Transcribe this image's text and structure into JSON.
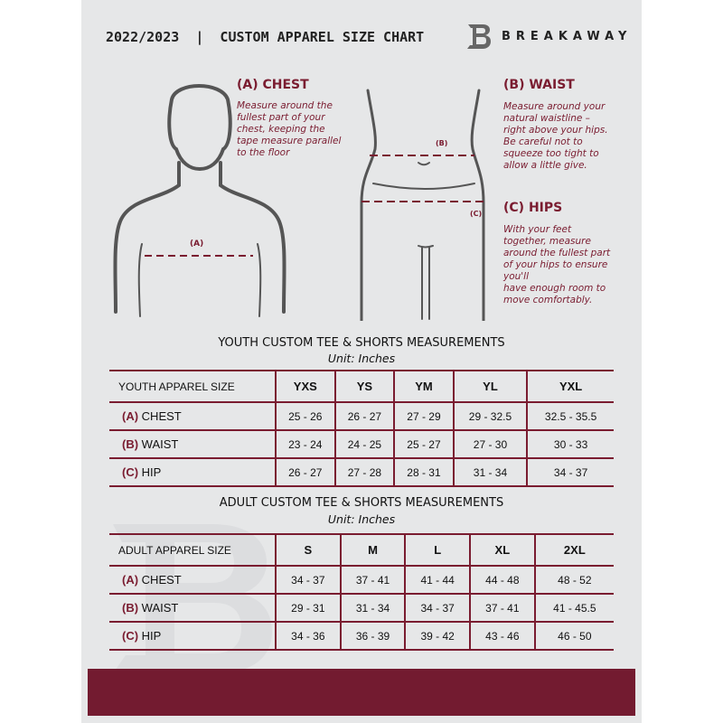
{
  "header": {
    "title": "2022/2023  |  CUSTOM APPAREL SIZE CHART",
    "brand": "BREAKAWAY",
    "logo_letter": "B"
  },
  "chest": {
    "heading": "(A) CHEST",
    "lines": [
      "Measure around the",
      "fullest part of your",
      "chest, keeping the",
      "tape measure parallel",
      "to the floor"
    ],
    "marker": "(A)"
  },
  "waist": {
    "heading": "(B) WAIST",
    "lines": [
      "Measure around your",
      "natural waistline –",
      "right above your hips.",
      "Be careful not to",
      "squeeze too tight to",
      "allow a little give."
    ],
    "marker": "(B)"
  },
  "hips": {
    "heading": "(C) HIPS",
    "lines": [
      "With your feet",
      "together, measure",
      "around the fullest part",
      "of your hips to ensure",
      "you'll",
      "have enough room to",
      "move comfortably."
    ],
    "marker": "(C)"
  },
  "youth": {
    "title": "YOUTH CUSTOM TEE & SHORTS MEASUREMENTS",
    "unit": "Unit: Inches",
    "size_label": "YOUTH APPAREL SIZE",
    "sizes": [
      "YXS",
      "YS",
      "YM",
      "YL",
      "YXL"
    ],
    "rows": [
      {
        "code": "(A)",
        "name": "CHEST",
        "values": [
          "25 - 26",
          "26 - 27",
          "27 - 29",
          "29 - 32.5",
          "32.5 - 35.5"
        ]
      },
      {
        "code": "(B)",
        "name": "WAIST",
        "values": [
          "23 - 24",
          "24 - 25",
          "25 - 27",
          "27 - 30",
          "30 - 33"
        ]
      },
      {
        "code": "(C)",
        "name": "HIP",
        "values": [
          "26 - 27",
          "27 - 28",
          "28 - 31",
          "31 - 34",
          "34 - 37"
        ]
      }
    ]
  },
  "adult": {
    "title": "ADULT CUSTOM TEE & SHORTS MEASUREMENTS",
    "unit": "Unit: Inches",
    "size_label": "ADULT APPAREL SIZE",
    "sizes": [
      "S",
      "M",
      "L",
      "XL",
      "2XL"
    ],
    "rows": [
      {
        "code": "(A)",
        "name": "CHEST",
        "values": [
          "34 - 37",
          "37 - 41",
          "41 - 44",
          "44 - 48",
          "48 - 52"
        ]
      },
      {
        "code": "(B)",
        "name": "WAIST",
        "values": [
          "29 - 31",
          "31 - 34",
          "34 - 37",
          "37 - 41",
          "41 - 45.5"
        ]
      },
      {
        "code": "(C)",
        "name": "HIP",
        "values": [
          "34 - 36",
          "36 - 39",
          "39 - 42",
          "43 - 46",
          "46 - 50"
        ]
      }
    ]
  },
  "colors": {
    "accent": "#7a1c30",
    "background": "#e6e7e8"
  }
}
